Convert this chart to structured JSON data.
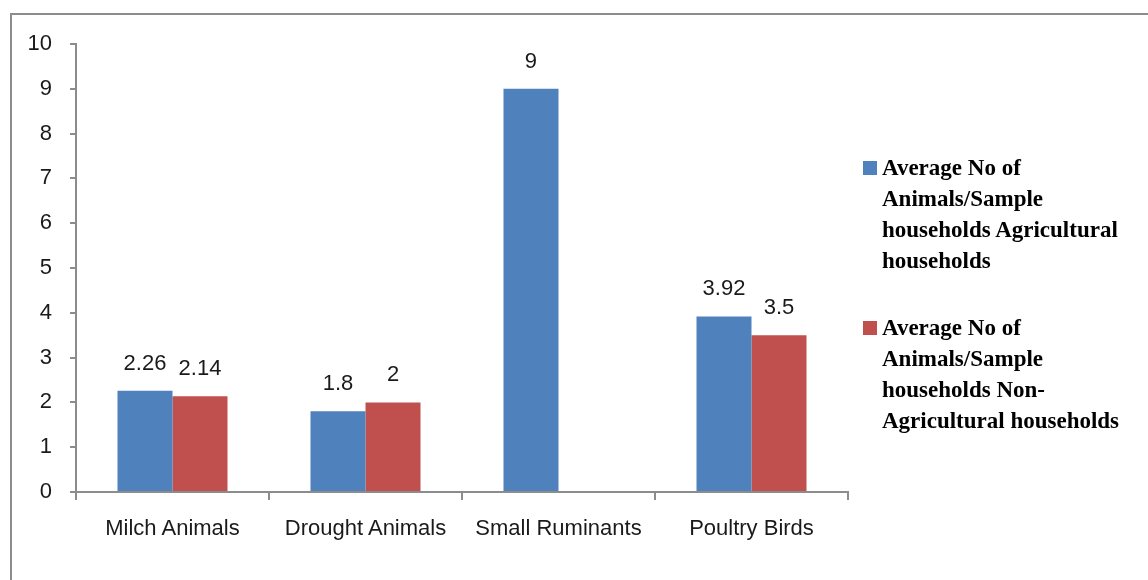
{
  "chart_data": {
    "type": "bar",
    "categories": [
      "Milch Animals",
      "Drought Animals",
      "Small Ruminants",
      "Poultry Birds"
    ],
    "series": [
      {
        "name": "Average No of Animals/Sample households Agricultural households",
        "color": "#4f81bd",
        "values": [
          2.26,
          1.8,
          9,
          3.92
        ]
      },
      {
        "name": "Average No of Animals/Sample households Non-Agricultural households",
        "color": "#c0504d",
        "values": [
          2.14,
          2,
          null,
          3.5
        ]
      }
    ],
    "ylim": [
      0,
      10
    ],
    "yticks": [
      0,
      1,
      2,
      3,
      4,
      5,
      6,
      7,
      8,
      9,
      10
    ],
    "data_labels": true,
    "legend": "right"
  }
}
